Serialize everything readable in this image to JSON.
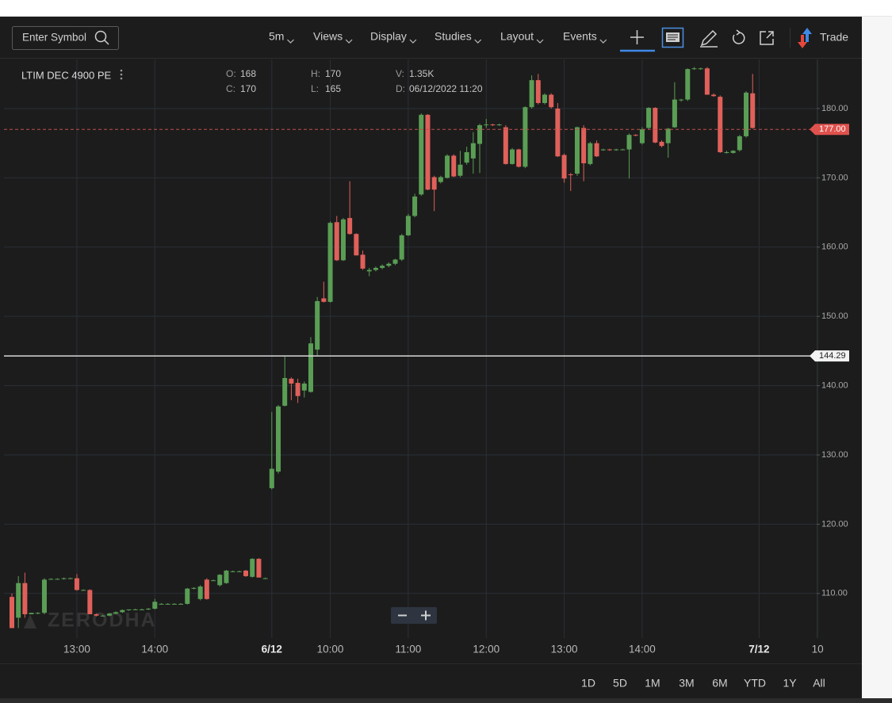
{
  "toolbar": {
    "search_placeholder": "Enter Symbol",
    "menus": [
      "5m",
      "Views",
      "Display",
      "Studies",
      "Layout",
      "Events"
    ],
    "trade": "Trade"
  },
  "symbol": "LTIM DEC 4900 PE",
  "ohlc_info": [
    {
      "label": "O:",
      "value": 168
    },
    {
      "label": "H:",
      "value": 170
    },
    {
      "label": "V:",
      "value": "1.35K"
    },
    {
      "label": "C:",
      "value": 170
    },
    {
      "label": "L:",
      "value": 165
    },
    {
      "label": "D:",
      "value": "06/12/2022 11:20"
    }
  ],
  "watermark": "ZERODHA",
  "range_buttons": [
    "1D",
    "5D",
    "1M",
    "3M",
    "6M",
    "YTD",
    "1Y",
    "All"
  ],
  "chart_data": {
    "type": "candlestick",
    "up_color": "#5a9e55",
    "down_color": "#e0605a",
    "grid": true,
    "ylim": [
      103.57,
      187.09
    ],
    "yticks": [
      {
        "value": 110,
        "label": "110.00"
      },
      {
        "value": 120,
        "label": "120.00"
      },
      {
        "value": 130,
        "label": "130.00"
      },
      {
        "value": 140,
        "label": "140.00"
      },
      {
        "value": 150,
        "label": "150.00"
      },
      {
        "value": 160,
        "label": "160.00"
      },
      {
        "value": 170,
        "label": "170.00"
      },
      {
        "value": 180,
        "label": "180.00"
      }
    ],
    "last_price": {
      "value": 177,
      "label": "177.00"
    },
    "crosshair_price": 144.29,
    "categories": [
      null,
      null,
      null,
      null,
      null,
      null,
      null,
      null,
      null,
      null,
      "13:00",
      null,
      null,
      null,
      null,
      null,
      null,
      null,
      null,
      null,
      null,
      null,
      "14:00",
      null,
      null,
      null,
      null,
      null,
      null,
      null,
      null,
      null,
      null,
      null,
      null,
      null,
      null,
      null,
      null,
      null,
      "6/12",
      null,
      null,
      null,
      null,
      null,
      null,
      null,
      null,
      "10:00",
      null,
      null,
      null,
      null,
      null,
      null,
      null,
      null,
      null,
      null,
      null,
      "11:00",
      null,
      null,
      null,
      null,
      null,
      null,
      null,
      null,
      null,
      null,
      null,
      "12:00",
      null,
      null,
      null,
      null,
      null,
      null,
      null,
      null,
      null,
      null,
      null,
      "13:00",
      null,
      null,
      null,
      null,
      null,
      null,
      null,
      null,
      null,
      null,
      null,
      "14:00",
      null,
      null,
      null,
      null,
      null,
      null,
      null,
      null,
      null,
      null,
      null,
      null,
      null,
      null,
      null,
      null,
      null,
      "7/12",
      null,
      null,
      null,
      null,
      null,
      null,
      null,
      null,
      "10"
    ],
    "open": [
      109.5,
      106.5,
      111.5,
      107,
      107.2,
      107.2,
      112,
      112.1,
      112.1,
      112.2,
      112.2,
      110.5,
      110.5,
      107,
      106.8,
      106.8,
      107.1,
      107.3,
      107.6,
      107.7,
      107.7,
      107.7,
      107.8,
      108.5,
      108.5,
      108.5,
      108.5,
      108.5,
      110.7,
      109.2,
      112,
      111.9,
      111.2,
      111.5,
      113.2,
      113.2,
      113.3,
      112.4,
      115,
      112.2,
      125.2,
      127.6,
      137.1,
      141,
      140.4,
      139.3,
      139.1,
      145.2,
      152.6,
      152.1,
      163.6,
      158.1,
      164.2,
      161.9,
      158.9,
      156.5,
      156.7,
      157,
      157.3,
      157.6,
      158.2,
      161.7,
      164.5,
      167.6,
      179.1,
      170.1,
      169.4,
      170,
      173.2,
      170.3,
      172.2,
      172.8,
      174.9,
      177.6,
      177.7,
      177.6,
      177.3,
      172,
      174.1,
      171.6,
      180.2,
      184.1,
      180.8,
      182,
      180,
      173.3,
      170.5,
      170.6,
      177.2,
      172,
      175,
      174,
      174.1,
      174,
      174.1,
      174.1,
      176.2,
      175,
      177.2,
      180.1,
      175.2,
      175,
      177.3,
      181.2,
      181.3,
      185.8,
      185.8,
      185.8,
      182,
      181.7,
      173.7,
      173.6,
      174,
      176,
      182.2,
      null,
      null,
      null,
      null,
      null,
      null,
      null,
      null,
      null,
      null
    ],
    "high": [
      110,
      112.5,
      113,
      107.2,
      107.3,
      112.2,
      112.2,
      112.2,
      112.3,
      112.3,
      112.8,
      110.6,
      110.6,
      107.1,
      106.9,
      107.2,
      107.4,
      107.7,
      107.7,
      107.8,
      107.8,
      107.9,
      109.2,
      108.6,
      108.6,
      108.6,
      108.6,
      110.8,
      110.9,
      111.2,
      112.2,
      112,
      112.8,
      113.4,
      113.3,
      113.3,
      113.4,
      115.1,
      115.1,
      112.3,
      136.2,
      137.2,
      144.2,
      141.2,
      141,
      140.6,
      147,
      152.8,
      155,
      163.7,
      164.5,
      164.2,
      169.5,
      162,
      159.5,
      157,
      157.2,
      157.5,
      157.8,
      158.3,
      161.9,
      164.8,
      167.7,
      179.3,
      179.2,
      170.3,
      170.3,
      173.4,
      173.4,
      173.9,
      174.5,
      176.6,
      177.8,
      178.5,
      177.8,
      177.8,
      177.6,
      174.3,
      174.2,
      180.3,
      184.8,
      185,
      182.2,
      182.2,
      180.8,
      173.5,
      170.7,
      177.4,
      177.6,
      175.2,
      175.4,
      174.2,
      174.2,
      174.2,
      174.2,
      176.4,
      176.3,
      177.3,
      180.2,
      180.2,
      175.4,
      177.2,
      183.8,
      181.4,
      185.8,
      186,
      185.9,
      186,
      182.2,
      181.9,
      173.9,
      174,
      176.2,
      182.5,
      185,
      null,
      null,
      null,
      null,
      null,
      null,
      null,
      null,
      null,
      null
    ],
    "low": [
      105,
      105,
      106.5,
      107,
      107,
      107,
      112,
      112,
      112,
      112.1,
      110.4,
      110.4,
      107,
      106.7,
      106.7,
      106.7,
      107,
      107.2,
      107.5,
      107.6,
      107.6,
      107.6,
      107.7,
      108.4,
      108.4,
      108.4,
      108.4,
      108.4,
      110.6,
      109,
      109.1,
      111.8,
      111,
      111.4,
      113.1,
      113.1,
      112.4,
      112.3,
      112.3,
      112.1,
      125,
      127.3,
      137,
      137.9,
      137.5,
      138.3,
      139,
      144.3,
      152,
      152,
      158,
      158,
      161.8,
      158.8,
      156.7,
      155.8,
      156.5,
      156.8,
      157.1,
      157.4,
      158,
      161.6,
      164.3,
      167.4,
      168.2,
      165.2,
      169.2,
      169.9,
      170.1,
      170.1,
      171.9,
      170.6,
      170.7,
      177.2,
      177.5,
      177.5,
      171.9,
      171.9,
      171.5,
      171.4,
      180,
      180.6,
      180.6,
      180,
      173,
      169.3,
      168.1,
      170.3,
      169.5,
      171.8,
      173,
      173.9,
      173.9,
      173.9,
      174,
      169.9,
      176,
      174.8,
      177,
      175,
      174.4,
      172.9,
      177.2,
      181,
      181.1,
      185.6,
      185.6,
      182,
      181.7,
      173.6,
      173.5,
      173.5,
      173.8,
      175.8,
      177.1,
      null,
      null,
      null,
      null,
      null,
      null,
      null,
      null,
      null,
      null
    ],
    "close": [
      105,
      111.5,
      107,
      107.2,
      107.2,
      112,
      112.1,
      112.1,
      112.2,
      112.2,
      110.5,
      110.5,
      107,
      106.8,
      106.8,
      107.1,
      107.3,
      107.6,
      107.7,
      107.7,
      107.7,
      107.8,
      108.8,
      108.5,
      108.5,
      108.5,
      108.5,
      110.7,
      110.8,
      111,
      109.2,
      111.9,
      112.7,
      113.3,
      113.2,
      113.2,
      112.5,
      115,
      112.3,
      112.2,
      128,
      137,
      141.1,
      140.3,
      138.5,
      140.3,
      146.1,
      152.2,
      152.1,
      163.5,
      158.1,
      164,
      161.9,
      158.8,
      156.9,
      156.7,
      157,
      157.3,
      157.6,
      158.2,
      161.7,
      164.5,
      167.3,
      179.1,
      168.3,
      168.3,
      170.1,
      173.2,
      170.2,
      171.9,
      173.7,
      175,
      177.6,
      177.7,
      177.6,
      177.7,
      172,
      174.1,
      171.6,
      180.2,
      184.1,
      180.8,
      182,
      180.2,
      173.1,
      169.9,
      170.4,
      177.3,
      172.1,
      175,
      173.1,
      174.1,
      174,
      174.1,
      174.1,
      176.2,
      176.1,
      177,
      180.1,
      175.1,
      174.6,
      177.1,
      181.3,
      181.3,
      185.7,
      185.8,
      185.8,
      182,
      181.8,
      173.7,
      173.7,
      173.9,
      176,
      182.3,
      177.2,
      null,
      null,
      null,
      null,
      null,
      null,
      null,
      null,
      null,
      null
    ]
  }
}
